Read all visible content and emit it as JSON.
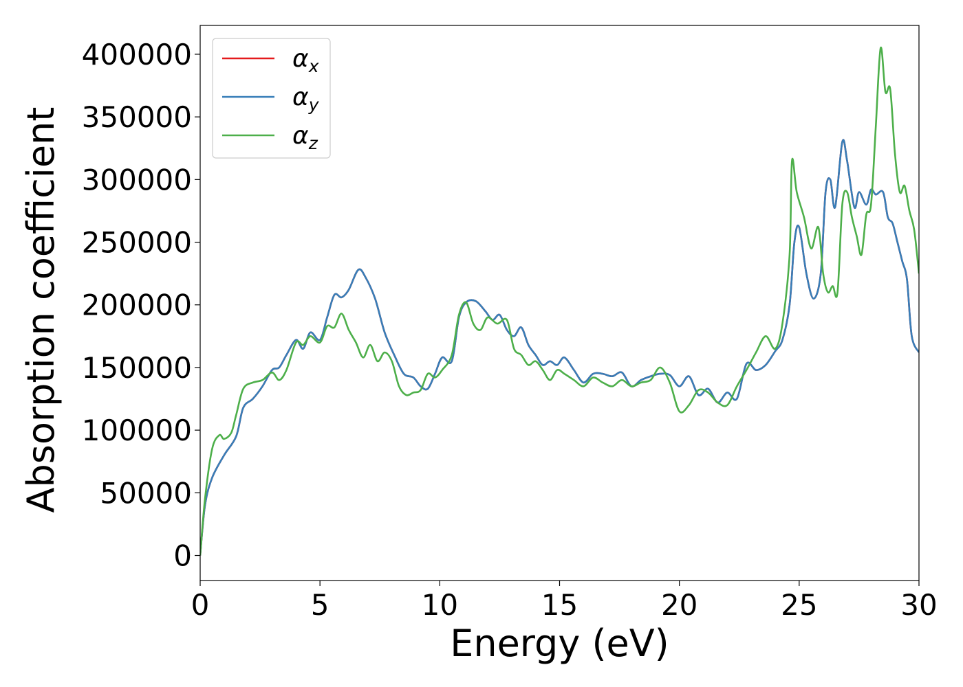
{
  "chart_data": {
    "type": "line",
    "title": "",
    "xlabel": "Energy (eV)",
    "ylabel": "Absorption coefficient",
    "xlim": [
      0,
      30
    ],
    "ylim": [
      -20000,
      423000
    ],
    "xticks": [
      0,
      5,
      10,
      15,
      20,
      25,
      30
    ],
    "xtick_labels": [
      "0",
      "5",
      "10",
      "15",
      "20",
      "25",
      "30"
    ],
    "yticks": [
      0,
      50000,
      100000,
      150000,
      200000,
      250000,
      300000,
      350000,
      400000
    ],
    "ytick_labels": [
      "0",
      "50000",
      "100000",
      "150000",
      "200000",
      "250000",
      "300000",
      "350000",
      "400000"
    ],
    "grid": false,
    "legend": {
      "placement": "top-left"
    },
    "series": [
      {
        "name": "αx",
        "base": "α",
        "sub": "x",
        "color": "#e41a1c",
        "x": [
          0,
          0.2,
          0.5,
          1.0,
          1.5,
          1.8,
          2.2,
          2.6,
          3.0,
          3.3,
          3.6,
          4.0,
          4.3,
          4.6,
          5.0,
          5.3,
          5.6,
          5.9,
          6.2,
          6.6,
          6.9,
          7.3,
          7.7,
          8.1,
          8.5,
          8.9,
          9.2,
          9.5,
          9.8,
          10.1,
          10.5,
          10.8,
          11.1,
          11.5,
          11.9,
          12.2,
          12.5,
          12.8,
          13.1,
          13.4,
          13.7,
          14.0,
          14.3,
          14.6,
          14.9,
          15.2,
          15.6,
          16.0,
          16.4,
          16.8,
          17.2,
          17.6,
          18.0,
          18.4,
          18.8,
          19.2,
          19.6,
          20.0,
          20.4,
          20.8,
          21.2,
          21.6,
          22.0,
          22.4,
          22.8,
          23.2,
          23.6,
          24.0,
          24.3,
          24.6,
          24.8,
          25.0,
          25.3,
          25.6,
          25.9,
          26.1,
          26.3,
          26.5,
          26.8,
          27.0,
          27.3,
          27.5,
          27.8,
          28.0,
          28.2,
          28.5,
          28.7,
          28.9,
          29.1,
          29.3,
          29.5,
          29.7,
          30.0
        ],
        "y": [
          0,
          40000,
          62000,
          80000,
          95000,
          118000,
          125000,
          135000,
          148000,
          150000,
          160000,
          172000,
          165000,
          178000,
          172000,
          190000,
          208000,
          206000,
          212000,
          228000,
          222000,
          205000,
          178000,
          160000,
          145000,
          142000,
          135000,
          133000,
          145000,
          158000,
          155000,
          190000,
          202000,
          203000,
          195000,
          188000,
          192000,
          180000,
          175000,
          182000,
          168000,
          160000,
          152000,
          155000,
          152000,
          158000,
          148000,
          138000,
          145000,
          145000,
          143000,
          146000,
          135000,
          140000,
          143000,
          145000,
          144000,
          135000,
          143000,
          128000,
          133000,
          122000,
          130000,
          125000,
          153000,
          148000,
          152000,
          163000,
          172000,
          200000,
          250000,
          262000,
          225000,
          205000,
          225000,
          290000,
          300000,
          278000,
          330000,
          315000,
          278000,
          290000,
          280000,
          292000,
          288000,
          290000,
          270000,
          265000,
          250000,
          235000,
          220000,
          175000,
          162000
        ]
      },
      {
        "name": "αy",
        "base": "α",
        "sub": "y",
        "color": "#377eb8",
        "x": [
          0,
          0.2,
          0.5,
          1.0,
          1.5,
          1.8,
          2.2,
          2.6,
          3.0,
          3.3,
          3.6,
          4.0,
          4.3,
          4.6,
          5.0,
          5.3,
          5.6,
          5.9,
          6.2,
          6.6,
          6.9,
          7.3,
          7.7,
          8.1,
          8.5,
          8.9,
          9.2,
          9.5,
          9.8,
          10.1,
          10.5,
          10.8,
          11.1,
          11.5,
          11.9,
          12.2,
          12.5,
          12.8,
          13.1,
          13.4,
          13.7,
          14.0,
          14.3,
          14.6,
          14.9,
          15.2,
          15.6,
          16.0,
          16.4,
          16.8,
          17.2,
          17.6,
          18.0,
          18.4,
          18.8,
          19.2,
          19.6,
          20.0,
          20.4,
          20.8,
          21.2,
          21.6,
          22.0,
          22.4,
          22.8,
          23.2,
          23.6,
          24.0,
          24.3,
          24.6,
          24.8,
          25.0,
          25.3,
          25.6,
          25.9,
          26.1,
          26.3,
          26.5,
          26.8,
          27.0,
          27.3,
          27.5,
          27.8,
          28.0,
          28.2,
          28.5,
          28.7,
          28.9,
          29.1,
          29.3,
          29.5,
          29.7,
          30.0
        ],
        "y": [
          0,
          40000,
          62000,
          80000,
          95000,
          118000,
          125000,
          135000,
          148000,
          150000,
          160000,
          172000,
          165000,
          178000,
          172000,
          190000,
          208000,
          206000,
          212000,
          228000,
          222000,
          205000,
          178000,
          160000,
          145000,
          142000,
          135000,
          133000,
          145000,
          158000,
          155000,
          190000,
          202000,
          203000,
          195000,
          188000,
          192000,
          180000,
          175000,
          182000,
          168000,
          160000,
          152000,
          155000,
          152000,
          158000,
          148000,
          138000,
          145000,
          145000,
          143000,
          146000,
          135000,
          140000,
          143000,
          145000,
          144000,
          135000,
          143000,
          128000,
          133000,
          122000,
          130000,
          125000,
          153000,
          148000,
          152000,
          163000,
          172000,
          200000,
          250000,
          262000,
          225000,
          205000,
          225000,
          290000,
          300000,
          278000,
          330000,
          315000,
          278000,
          290000,
          280000,
          292000,
          288000,
          290000,
          270000,
          265000,
          250000,
          235000,
          220000,
          175000,
          162000
        ]
      },
      {
        "name": "αz",
        "base": "α",
        "sub": "z",
        "color": "#4daf4a",
        "x": [
          0,
          0.2,
          0.5,
          0.8,
          1.0,
          1.3,
          1.5,
          1.8,
          2.2,
          2.6,
          3.0,
          3.3,
          3.6,
          4.0,
          4.3,
          4.6,
          5.0,
          5.3,
          5.6,
          5.9,
          6.2,
          6.5,
          6.8,
          7.1,
          7.4,
          7.7,
          8.0,
          8.3,
          8.6,
          8.9,
          9.2,
          9.5,
          9.8,
          10.1,
          10.5,
          10.8,
          11.1,
          11.4,
          11.7,
          12.0,
          12.4,
          12.8,
          13.1,
          13.4,
          13.7,
          14.0,
          14.3,
          14.6,
          14.9,
          15.2,
          15.6,
          16.0,
          16.4,
          16.8,
          17.2,
          17.6,
          18.0,
          18.4,
          18.8,
          19.2,
          19.6,
          20.0,
          20.4,
          20.8,
          21.2,
          21.6,
          22.0,
          22.4,
          22.8,
          23.2,
          23.6,
          24.0,
          24.3,
          24.6,
          24.7,
          24.9,
          25.2,
          25.5,
          25.8,
          26.0,
          26.2,
          26.4,
          26.6,
          26.8,
          27.0,
          27.2,
          27.4,
          27.6,
          27.8,
          28.0,
          28.2,
          28.4,
          28.6,
          28.8,
          29.0,
          29.2,
          29.4,
          29.6,
          29.8,
          30.0
        ],
        "y": [
          0,
          45000,
          85000,
          96000,
          93000,
          98000,
          112000,
          133000,
          138000,
          140000,
          146000,
          140000,
          148000,
          170000,
          168000,
          175000,
          170000,
          183000,
          182000,
          193000,
          180000,
          170000,
          158000,
          168000,
          155000,
          162000,
          155000,
          135000,
          128000,
          130000,
          132000,
          145000,
          142000,
          148000,
          160000,
          192000,
          202000,
          185000,
          180000,
          190000,
          185000,
          188000,
          165000,
          160000,
          152000,
          155000,
          148000,
          140000,
          148000,
          145000,
          140000,
          135000,
          142000,
          138000,
          135000,
          140000,
          135000,
          138000,
          140000,
          150000,
          138000,
          115000,
          120000,
          132000,
          130000,
          122000,
          120000,
          135000,
          148000,
          162000,
          175000,
          165000,
          185000,
          240000,
          315000,
          290000,
          270000,
          245000,
          262000,
          225000,
          210000,
          215000,
          210000,
          280000,
          290000,
          270000,
          255000,
          240000,
          272000,
          280000,
          343000,
          405000,
          370000,
          372000,
          320000,
          290000,
          295000,
          275000,
          260000,
          225000
        ]
      }
    ]
  }
}
